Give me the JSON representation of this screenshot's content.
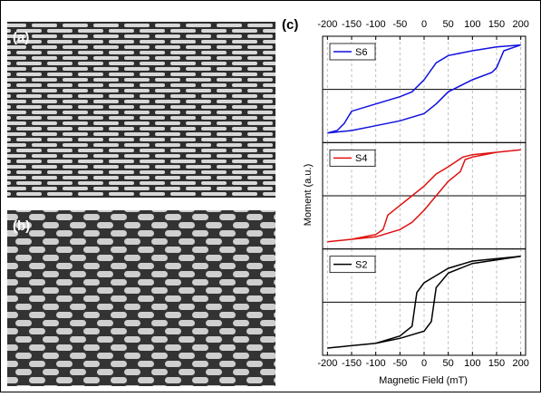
{
  "panels": [
    "(a)",
    "(b)",
    "(c)"
  ],
  "x_label": "Magnetic Field (mT)",
  "y_label": "Moment (a.u.)",
  "chart_data": [
    {
      "type": "line",
      "xlim": [
        -210,
        210
      ],
      "ylim": [
        -1.1,
        1.1
      ],
      "xticks": [
        -200,
        -150,
        -100,
        -50,
        0,
        50,
        100,
        150,
        200
      ],
      "grid": true,
      "legend": "top-left",
      "x": [
        200,
        150,
        100,
        50,
        25,
        0,
        -25,
        -50,
        -100,
        -150,
        -165,
        -180,
        -200,
        -180,
        -150,
        -100,
        -50,
        0,
        25,
        50,
        100,
        140,
        150,
        165,
        200
      ],
      "series": [
        {
          "name": "S6",
          "color": "#1010e0",
          "values": [
            0.92,
            0.88,
            0.8,
            0.7,
            0.55,
            0.2,
            -0.05,
            -0.15,
            -0.3,
            -0.45,
            -0.7,
            -0.85,
            -0.9,
            -0.88,
            -0.85,
            -0.75,
            -0.65,
            -0.5,
            -0.3,
            -0.05,
            0.2,
            0.35,
            0.45,
            0.8,
            0.92
          ]
        }
      ]
    },
    {
      "type": "line",
      "xlim": [
        -210,
        210
      ],
      "ylim": [
        -1.1,
        1.1
      ],
      "xticks": [
        -200,
        -150,
        -100,
        -50,
        0,
        50,
        100,
        150,
        200
      ],
      "grid": true,
      "legend": "top-left",
      "x": [
        200,
        100,
        80,
        50,
        25,
        0,
        -25,
        -50,
        -75,
        -85,
        -100,
        -150,
        -200,
        -100,
        -50,
        -25,
        0,
        25,
        50,
        75,
        85,
        100,
        150,
        200
      ],
      "series": [
        {
          "name": "S4",
          "color": "#e01010",
          "values": [
            0.95,
            0.85,
            0.8,
            0.6,
            0.45,
            0.2,
            0,
            -0.2,
            -0.4,
            -0.7,
            -0.8,
            -0.9,
            -0.95,
            -0.85,
            -0.7,
            -0.55,
            -0.3,
            0,
            0.3,
            0.5,
            0.75,
            0.8,
            0.9,
            0.95
          ]
        }
      ]
    },
    {
      "type": "line",
      "xlim": [
        -210,
        210
      ],
      "ylim": [
        -1.1,
        1.1
      ],
      "xticks": [
        -200,
        -150,
        -100,
        -50,
        0,
        50,
        100,
        150,
        200
      ],
      "grid": true,
      "legend": "top-left",
      "x": [
        200,
        100,
        50,
        25,
        0,
        -15,
        -25,
        -50,
        -100,
        -200,
        -100,
        -50,
        0,
        15,
        25,
        50,
        100,
        200
      ],
      "series": [
        {
          "name": "S2",
          "color": "#000000",
          "values": [
            0.95,
            0.85,
            0.7,
            0.55,
            0.4,
            0.2,
            -0.5,
            -0.7,
            -0.85,
            -0.95,
            -0.85,
            -0.75,
            -0.6,
            -0.4,
            0.3,
            0.6,
            0.8,
            0.95
          ]
        }
      ]
    }
  ]
}
